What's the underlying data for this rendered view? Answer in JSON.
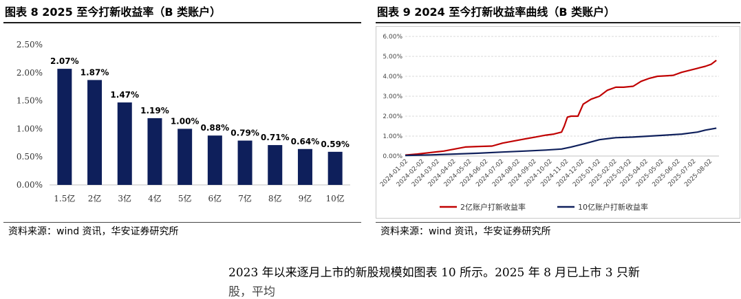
{
  "left_panel": {
    "title": "图表 8 2025 至今打新收益率（B 类账户）",
    "source": "资料来源：wind 资讯，华安证券研究所"
  },
  "right_panel": {
    "title": "图表 9 2024 至今打新收益率曲线（B 类账户）",
    "source": "资料来源：wind 资讯，华安证券研究所"
  },
  "body_text": {
    "line1": "2023 年以来逐月上市的新股规模如图表 10 所示。2025 年 8 月已上市 3 只新",
    "line2": "股，平均"
  },
  "colors": {
    "bar": "#0e1f5b",
    "series_2yi": "#c00000",
    "series_10yi": "#0e1f5b"
  },
  "chart_data": [
    {
      "type": "bar",
      "categories": [
        "1.5亿",
        "2亿",
        "3亿",
        "4亿",
        "5亿",
        "6亿",
        "7亿",
        "8亿",
        "9亿",
        "10亿"
      ],
      "values": [
        2.07,
        1.87,
        1.47,
        1.19,
        1.0,
        0.88,
        0.79,
        0.71,
        0.64,
        0.59
      ],
      "data_labels": [
        "2.07%",
        "1.87%",
        "1.47%",
        "1.19%",
        "1.00%",
        "0.88%",
        "0.79%",
        "0.71%",
        "0.64%",
        "0.59%"
      ],
      "ylim": [
        0,
        2.5
      ],
      "yticks": [
        "0.00%",
        "0.50%",
        "1.00%",
        "1.50%",
        "2.00%",
        "2.50%"
      ],
      "grid": false,
      "color": "#0e1f5b"
    },
    {
      "type": "line",
      "x_ticks": [
        "2024-01-02",
        "2024-02-02",
        "2024-03-02",
        "2024-04-02",
        "2024-05-02",
        "2024-06-02",
        "2024-07-02",
        "2024-08-02",
        "2024-09-02",
        "2024-10-02",
        "2024-11-02",
        "2024-12-02",
        "2025-01-02",
        "2025-02-02",
        "2025-03-02",
        "2025-04-02",
        "2025-05-02",
        "2025-06-02",
        "2025-07-02",
        "2025-08-02"
      ],
      "ylim": [
        0,
        6
      ],
      "yticks": [
        "0.00%",
        "1.00%",
        "2.00%",
        "3.00%",
        "4.00%",
        "5.00%",
        "6.00%"
      ],
      "legend_position": "bottom",
      "series": [
        {
          "name": "2亿账户打新收益率",
          "color": "#c00000",
          "x": [
            "2024-01-02",
            "2024-01-25",
            "2024-02-20",
            "2024-03-15",
            "2024-04-05",
            "2024-04-25",
            "2024-05-20",
            "2024-06-15",
            "2024-07-05",
            "2024-07-25",
            "2024-08-15",
            "2024-09-05",
            "2024-09-25",
            "2024-10-10",
            "2024-10-25",
            "2024-10-30",
            "2024-11-05",
            "2024-11-12",
            "2024-11-25",
            "2024-12-05",
            "2024-12-20",
            "2025-01-05",
            "2025-01-20",
            "2025-02-05",
            "2025-02-20",
            "2025-03-10",
            "2025-03-25",
            "2025-04-10",
            "2025-04-25",
            "2025-05-10",
            "2025-05-25",
            "2025-06-10",
            "2025-06-25",
            "2025-07-10",
            "2025-07-25",
            "2025-08-05",
            "2025-08-15"
          ],
          "y": [
            0.05,
            0.1,
            0.18,
            0.25,
            0.35,
            0.45,
            0.48,
            0.5,
            0.65,
            0.75,
            0.85,
            0.95,
            1.05,
            1.1,
            1.2,
            1.5,
            1.95,
            2.0,
            2.0,
            2.6,
            2.85,
            3.0,
            3.3,
            3.45,
            3.45,
            3.5,
            3.75,
            3.9,
            4.0,
            4.02,
            4.05,
            4.2,
            4.3,
            4.4,
            4.5,
            4.6,
            4.8
          ]
        },
        {
          "name": "10亿账户打新收益率",
          "color": "#0e1f5b",
          "x": [
            "2024-01-02",
            "2024-02-20",
            "2024-04-05",
            "2024-05-20",
            "2024-07-05",
            "2024-08-15",
            "2024-09-25",
            "2024-10-25",
            "2024-11-12",
            "2024-12-05",
            "2025-01-05",
            "2025-02-05",
            "2025-03-10",
            "2025-04-10",
            "2025-05-10",
            "2025-06-10",
            "2025-07-10",
            "2025-07-25",
            "2025-08-15"
          ],
          "y": [
            0.03,
            0.06,
            0.1,
            0.14,
            0.2,
            0.25,
            0.3,
            0.35,
            0.45,
            0.6,
            0.82,
            0.92,
            0.95,
            1.0,
            1.05,
            1.1,
            1.2,
            1.3,
            1.4
          ]
        }
      ]
    }
  ]
}
